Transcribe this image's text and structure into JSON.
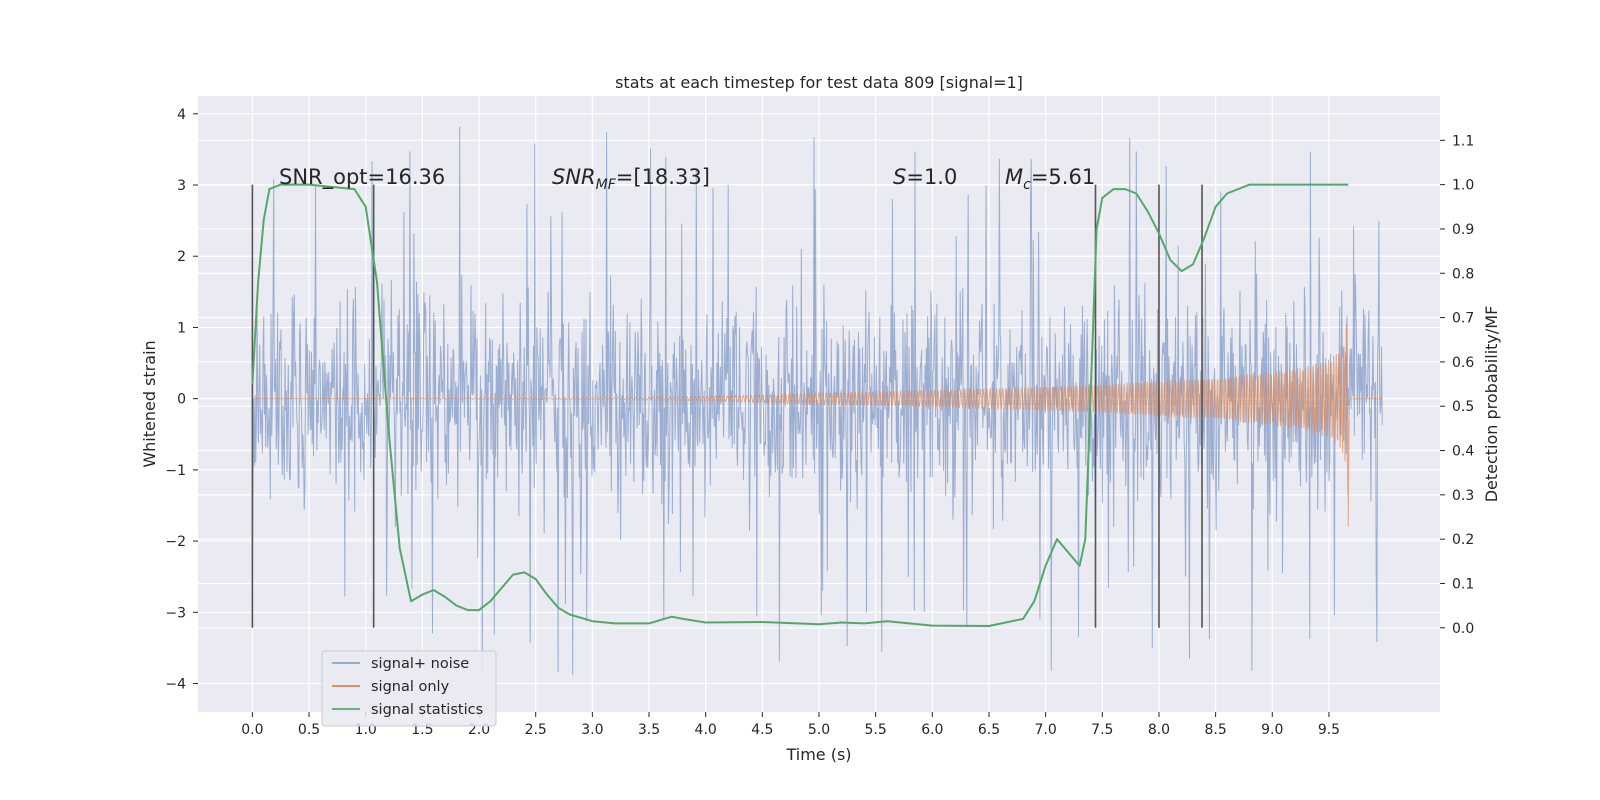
{
  "chart_data": {
    "type": "line",
    "title": "stats at each timestep for test data 809 [signal=1]",
    "xlabel": "Time (s)",
    "ylabel": "Whitened strain",
    "y2label": "Detection probability/MF",
    "xlim": [
      -0.48,
      10.48
    ],
    "ylim": [
      -4.4,
      4.25
    ],
    "y2lim": [
      -0.19,
      1.2
    ],
    "grid": true,
    "legend_position": "lower-left",
    "x_ticks": [
      "0.0",
      "0.5",
      "1.0",
      "1.5",
      "2.0",
      "2.5",
      "3.0",
      "3.5",
      "4.0",
      "4.5",
      "5.0",
      "5.5",
      "6.0",
      "6.5",
      "7.0",
      "7.5",
      "8.0",
      "8.5",
      "9.0",
      "9.5"
    ],
    "y_ticks": [
      "4",
      "3",
      "2",
      "1",
      "0",
      "−1",
      "−2",
      "−3",
      "−4"
    ],
    "y2_ticks": [
      "1.1",
      "1.0",
      "0.9",
      "0.8",
      "0.7",
      "0.6",
      "0.5",
      "0.4",
      "0.3",
      "0.2",
      "0.1",
      "0.0"
    ],
    "annotations": {
      "snr_opt": "SNR_opt=16.36",
      "snr_mf_main": "SNR",
      "snr_mf_sub": "MF",
      "snr_mf_rest": "=[18.33]",
      "s_main": "S",
      "s_rest": "=1.0",
      "mc_main": "M",
      "mc_sub": "c",
      "mc_rest": "=5.61"
    },
    "vertical_markers": [
      0.0,
      1.07,
      7.44,
      8.0,
      8.38
    ],
    "series": [
      {
        "name": "signal+ noise",
        "color": "#4c72b0",
        "x_range": [
          0.0,
          9.97
        ],
        "amplitude_typical": 1.5,
        "amplitude_peaks": 3.9,
        "y_range": [
          -4.1,
          3.9
        ]
      },
      {
        "name": "signal only",
        "color": "#dd8452",
        "x": [
          0.0,
          3.0,
          4.0,
          5.0,
          6.0,
          7.0,
          7.5,
          8.0,
          8.5,
          9.0,
          9.3,
          9.5,
          9.6,
          9.65,
          9.67
        ],
        "envelope": [
          0.0,
          0.01,
          0.03,
          0.08,
          0.12,
          0.17,
          0.2,
          0.25,
          0.3,
          0.38,
          0.45,
          0.55,
          0.7,
          0.95,
          1.5
        ],
        "x_end": 9.97
      },
      {
        "name": "signal statistics",
        "color": "#55a868",
        "axis": "right",
        "x": [
          0.0,
          0.05,
          0.1,
          0.15,
          0.25,
          0.5,
          0.9,
          1.0,
          1.1,
          1.2,
          1.3,
          1.4,
          1.5,
          1.6,
          1.7,
          1.8,
          1.9,
          2.0,
          2.1,
          2.2,
          2.3,
          2.4,
          2.5,
          2.6,
          2.7,
          2.8,
          3.0,
          3.2,
          3.5,
          3.7,
          3.8,
          4.0,
          4.5,
          5.0,
          5.2,
          5.4,
          5.6,
          6.0,
          6.5,
          6.8,
          6.9,
          7.0,
          7.1,
          7.2,
          7.3,
          7.35,
          7.4,
          7.45,
          7.5,
          7.6,
          7.7,
          7.8,
          7.9,
          8.0,
          8.1,
          8.2,
          8.3,
          8.4,
          8.5,
          8.6,
          8.8,
          9.0,
          9.5,
          9.67
        ],
        "values": [
          0.55,
          0.78,
          0.92,
          0.99,
          1.0,
          1.0,
          0.99,
          0.95,
          0.78,
          0.45,
          0.18,
          0.06,
          0.075,
          0.085,
          0.07,
          0.05,
          0.04,
          0.04,
          0.06,
          0.09,
          0.12,
          0.125,
          0.11,
          0.075,
          0.045,
          0.03,
          0.015,
          0.01,
          0.01,
          0.025,
          0.02,
          0.012,
          0.013,
          0.008,
          0.012,
          0.01,
          0.015,
          0.005,
          0.004,
          0.02,
          0.06,
          0.14,
          0.2,
          0.17,
          0.14,
          0.2,
          0.55,
          0.9,
          0.97,
          0.99,
          0.99,
          0.98,
          0.94,
          0.89,
          0.83,
          0.805,
          0.82,
          0.88,
          0.95,
          0.98,
          1.0,
          1.0,
          1.0,
          1.0
        ]
      }
    ]
  }
}
